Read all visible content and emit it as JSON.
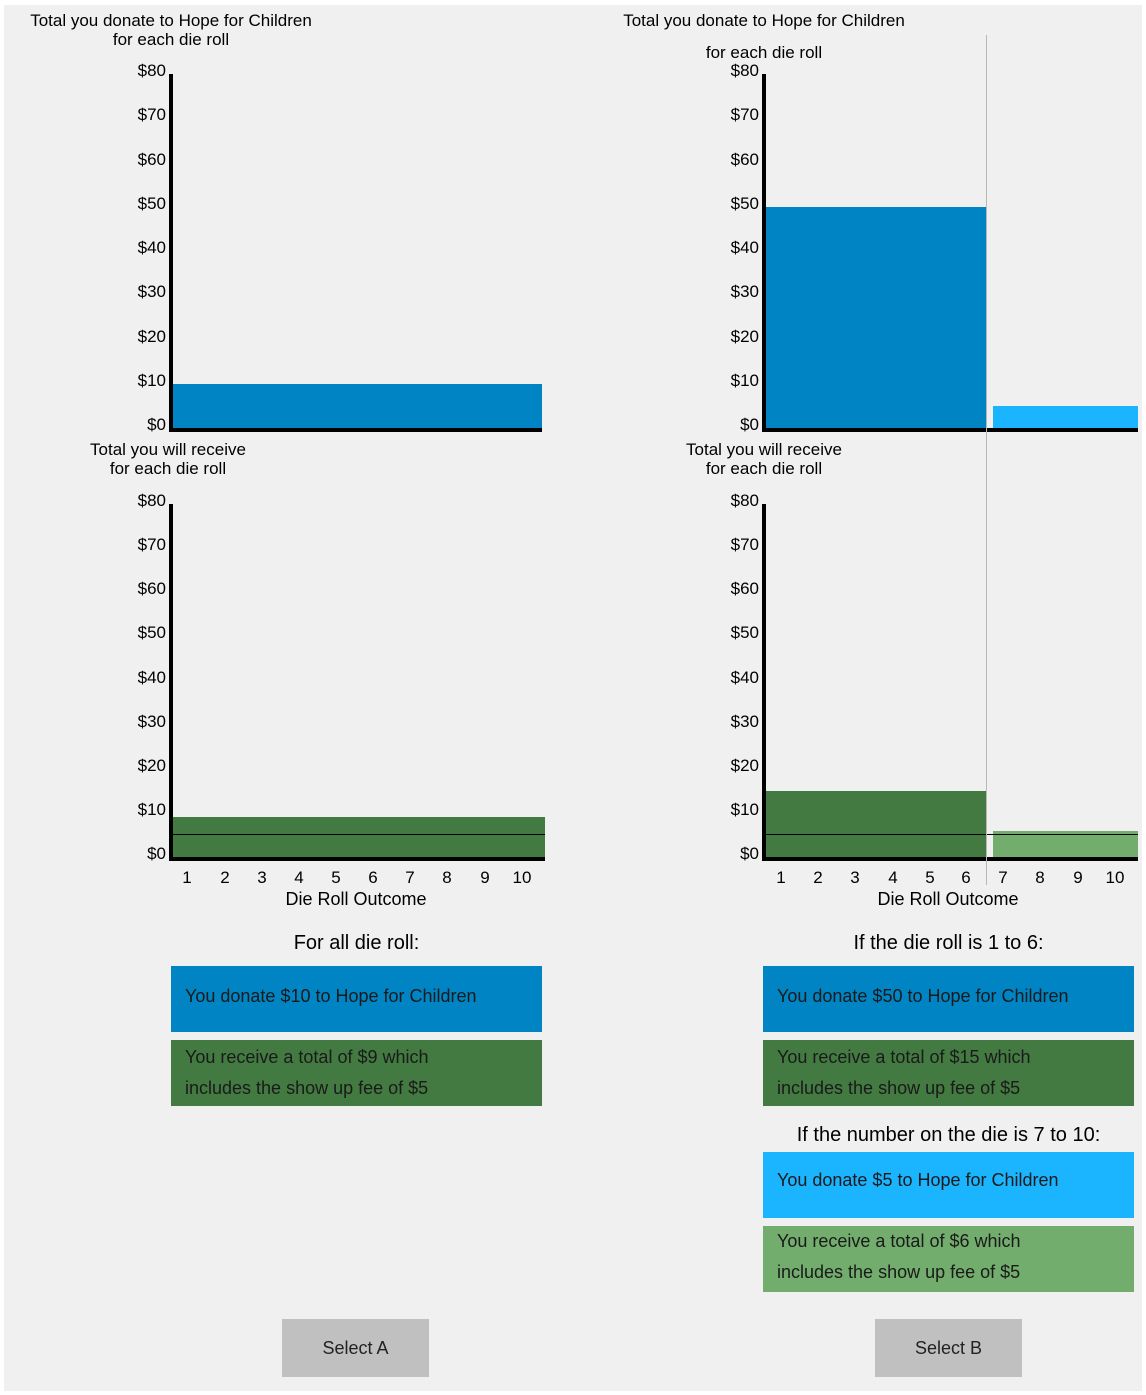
{
  "colors": {
    "background": "#f0f0f0",
    "donate_main": "#0084c4",
    "donate_alt": "#1ab4ff",
    "receive_main": "#427a41",
    "receive_alt": "#72ad6e",
    "button": "#c0c0c0"
  },
  "y_ticks": [
    "$80",
    "$70",
    "$60",
    "$50",
    "$40",
    "$30",
    "$20",
    "$10",
    "$0"
  ],
  "x_ticks": [
    "1",
    "2",
    "3",
    "4",
    "5",
    "6",
    "7",
    "8",
    "9",
    "10"
  ],
  "x_label": "Die Roll Outcome",
  "chart_titles": {
    "donate_line1": "Total you donate to Hope for Children",
    "donate_line2": "for each die roll",
    "receive_line1": "Total you will receive",
    "receive_line2": "for each die roll"
  },
  "chart_data": [
    {
      "type": "bar",
      "option": "A",
      "title": "Total you donate to Hope for Children for each die roll",
      "categories": [
        "1",
        "2",
        "3",
        "4",
        "5",
        "6",
        "7",
        "8",
        "9",
        "10"
      ],
      "values": [
        10,
        10,
        10,
        10,
        10,
        10,
        10,
        10,
        10,
        10
      ],
      "ylim": [
        0,
        80
      ]
    },
    {
      "type": "bar",
      "option": "A",
      "title": "Total you will receive for each die roll",
      "xlabel": "Die Roll Outcome",
      "categories": [
        "1",
        "2",
        "3",
        "4",
        "5",
        "6",
        "7",
        "8",
        "9",
        "10"
      ],
      "values": [
        9,
        9,
        9,
        9,
        9,
        9,
        9,
        9,
        9,
        9
      ],
      "reference_line": 5,
      "ylim": [
        0,
        80
      ]
    },
    {
      "type": "bar",
      "option": "B",
      "title": "Total you donate to Hope for Children for each die roll",
      "categories": [
        "1",
        "2",
        "3",
        "4",
        "5",
        "6",
        "7",
        "8",
        "9",
        "10"
      ],
      "values": [
        50,
        50,
        50,
        50,
        50,
        50,
        5,
        5,
        5,
        5
      ],
      "ylim": [
        0,
        80
      ]
    },
    {
      "type": "bar",
      "option": "B",
      "title": "Total you will receive for each die roll",
      "xlabel": "Die Roll Outcome",
      "categories": [
        "1",
        "2",
        "3",
        "4",
        "5",
        "6",
        "7",
        "8",
        "9",
        "10"
      ],
      "values": [
        15,
        15,
        15,
        15,
        15,
        15,
        6,
        6,
        6,
        6
      ],
      "reference_line": 5,
      "ylim": [
        0,
        80
      ]
    }
  ],
  "option_a": {
    "condition": "For all die roll:",
    "donate_text": "You donate $10 to Hope for Children",
    "receive_line1": "You receive a total of $9 which",
    "receive_line2": "includes the show up fee of $5",
    "button_label": "Select A"
  },
  "option_b": {
    "condition1": "If the die roll is 1 to 6:",
    "donate1_text": "You donate $50 to Hope for Children",
    "receive1_line1": "You receive a total of $15 which",
    "receive1_line2": "includes the show up fee of $5",
    "condition2": "If the number on the die is 7 to 10:",
    "donate2_text": "You donate $5 to Hope for Children",
    "receive2_line1": "You receive a total of $6 which",
    "receive2_line2": "includes the show up fee of $5",
    "button_label": "Select B"
  }
}
